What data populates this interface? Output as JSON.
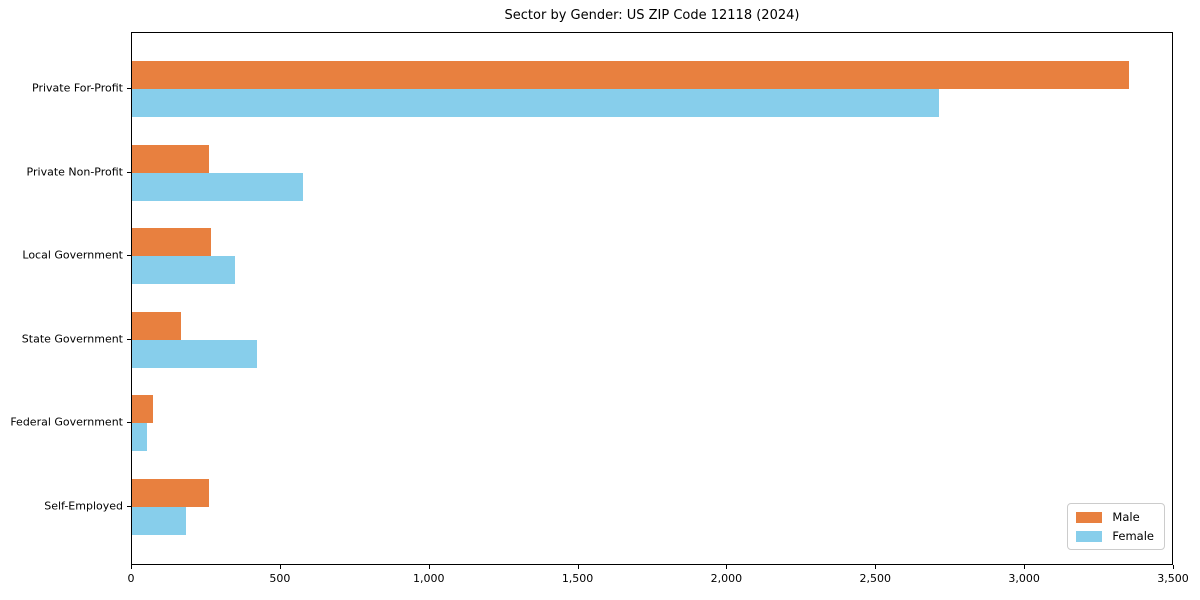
{
  "chart_data": {
    "type": "bar",
    "orientation": "horizontal",
    "title": "Sector by Gender: US ZIP Code 12118 (2024)",
    "categories": [
      "Private For-Profit",
      "Private Non-Profit",
      "Local Government",
      "State Government",
      "Federal Government",
      "Self-Employed"
    ],
    "series": [
      {
        "name": "Male",
        "color": "#e8803f",
        "values": [
          3350,
          260,
          265,
          165,
          70,
          260
        ]
      },
      {
        "name": "Female",
        "color": "#87ceeb",
        "values": [
          2710,
          575,
          345,
          420,
          50,
          180
        ]
      }
    ],
    "xlim": [
      0,
      3500
    ],
    "xticks": [
      0,
      500,
      1000,
      1500,
      2000,
      2500,
      3000,
      3500
    ],
    "xtick_labels": [
      "0",
      "500",
      "1,000",
      "1,500",
      "2,000",
      "2,500",
      "3,000",
      "3,500"
    ],
    "legend_position": "lower right",
    "grid": false,
    "axis_color": "#000000"
  }
}
